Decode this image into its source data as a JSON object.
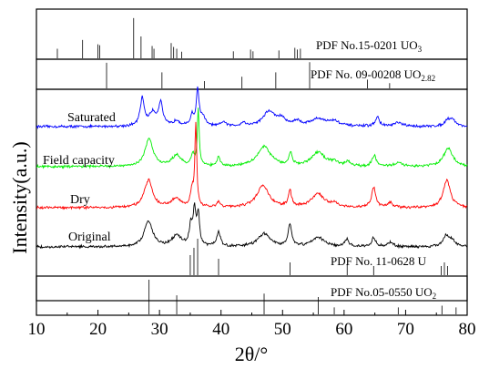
{
  "chart_data": {
    "type": "line",
    "xlabel": "2θ/°",
    "ylabel": "Intensity(a.u.)",
    "xlim": [
      10,
      80
    ],
    "x_ticks": [
      "10",
      "20",
      "30",
      "40",
      "50",
      "60",
      "70",
      "80"
    ],
    "grid": false,
    "reference_patterns": [
      {
        "label": "PDF No.15-0201 UO3",
        "lines": [
          {
            "x": 13.4,
            "h": 0.22
          },
          {
            "x": 17.5,
            "h": 0.42
          },
          {
            "x": 20.0,
            "h": 0.32
          },
          {
            "x": 20.3,
            "h": 0.3
          },
          {
            "x": 25.8,
            "h": 0.92
          },
          {
            "x": 27.0,
            "h": 0.5
          },
          {
            "x": 28.8,
            "h": 0.28
          },
          {
            "x": 29.1,
            "h": 0.22
          },
          {
            "x": 31.9,
            "h": 0.35
          },
          {
            "x": 32.3,
            "h": 0.26
          },
          {
            "x": 32.8,
            "h": 0.22
          },
          {
            "x": 33.6,
            "h": 0.15
          },
          {
            "x": 42.0,
            "h": 0.16
          },
          {
            "x": 44.8,
            "h": 0.2
          },
          {
            "x": 45.2,
            "h": 0.16
          },
          {
            "x": 49.4,
            "h": 0.18
          },
          {
            "x": 52.0,
            "h": 0.24
          },
          {
            "x": 52.4,
            "h": 0.2
          },
          {
            "x": 52.9,
            "h": 0.22
          }
        ]
      },
      {
        "label": "PDF No. 09-00208 UO2.82",
        "lines": [
          {
            "x": 21.4,
            "h": 0.88
          },
          {
            "x": 30.4,
            "h": 0.55
          },
          {
            "x": 37.3,
            "h": 0.25
          },
          {
            "x": 43.4,
            "h": 0.4
          },
          {
            "x": 48.9,
            "h": 0.55
          },
          {
            "x": 54.4,
            "h": 0.9
          },
          {
            "x": 63.8,
            "h": 0.3
          },
          {
            "x": 67.4,
            "h": 0.18
          }
        ]
      },
      {
        "label": "PDF No. 11-0628 U",
        "lines": [
          {
            "x": 35.0,
            "h": 0.55
          },
          {
            "x": 35.6,
            "h": 0.75
          },
          {
            "x": 36.2,
            "h": 1.0
          },
          {
            "x": 39.6,
            "h": 0.45
          },
          {
            "x": 51.2,
            "h": 0.35
          },
          {
            "x": 60.5,
            "h": 0.3
          },
          {
            "x": 64.8,
            "h": 0.25
          },
          {
            "x": 75.8,
            "h": 0.25
          },
          {
            "x": 76.3,
            "h": 0.35
          },
          {
            "x": 76.8,
            "h": 0.25
          }
        ]
      },
      {
        "label": "PDF No.05-0550 UO2",
        "lines": [
          {
            "x": 28.3,
            "h": 1.0
          },
          {
            "x": 32.8,
            "h": 0.55
          },
          {
            "x": 47.0,
            "h": 0.6
          },
          {
            "x": 55.8,
            "h": 0.5
          },
          {
            "x": 58.4,
            "h": 0.2
          },
          {
            "x": 68.8,
            "h": 0.2
          },
          {
            "x": 75.9,
            "h": 0.25
          },
          {
            "x": 78.2,
            "h": 0.2
          }
        ]
      }
    ],
    "series": [
      {
        "name": "Saturated",
        "color": "#0000ff",
        "peaks": [
          {
            "x": 27.2,
            "h": 30,
            "w": 0.4
          },
          {
            "x": 28.9,
            "h": 14,
            "w": 0.7
          },
          {
            "x": 30.2,
            "h": 25,
            "w": 0.4
          },
          {
            "x": 32.8,
            "h": 6,
            "w": 0.6
          },
          {
            "x": 35.3,
            "h": 12,
            "w": 0.3
          },
          {
            "x": 36.2,
            "h": 40,
            "w": 0.25
          },
          {
            "x": 37.0,
            "h": 10,
            "w": 0.5
          },
          {
            "x": 40.4,
            "h": 5,
            "w": 0.4
          },
          {
            "x": 43.6,
            "h": 4,
            "w": 0.4
          },
          {
            "x": 47.8,
            "h": 16,
            "w": 1.2
          },
          {
            "x": 49.8,
            "h": 7,
            "w": 0.8
          },
          {
            "x": 52.3,
            "h": 5,
            "w": 0.7
          },
          {
            "x": 55.8,
            "h": 8,
            "w": 1.5
          },
          {
            "x": 58.4,
            "h": 5,
            "w": 1.0
          },
          {
            "x": 65.4,
            "h": 10,
            "w": 0.4
          },
          {
            "x": 68.8,
            "h": 4,
            "w": 0.8
          },
          {
            "x": 76.8,
            "h": 6,
            "w": 0.6
          },
          {
            "x": 77.6,
            "h": 7,
            "w": 0.6
          }
        ]
      },
      {
        "name": "Field capacity",
        "color": "#00ee00",
        "peaks": [
          {
            "x": 28.3,
            "h": 30,
            "w": 0.8
          },
          {
            "x": 32.8,
            "h": 12,
            "w": 0.9
          },
          {
            "x": 35.4,
            "h": 12,
            "w": 0.3
          },
          {
            "x": 36.3,
            "h": 62,
            "w": 0.18
          },
          {
            "x": 39.6,
            "h": 10,
            "w": 0.3
          },
          {
            "x": 47.0,
            "h": 22,
            "w": 1.3
          },
          {
            "x": 51.3,
            "h": 14,
            "w": 0.3
          },
          {
            "x": 55.8,
            "h": 15,
            "w": 1.3
          },
          {
            "x": 58.4,
            "h": 4,
            "w": 0.8
          },
          {
            "x": 60.6,
            "h": 5,
            "w": 0.4
          },
          {
            "x": 64.9,
            "h": 12,
            "w": 0.4
          },
          {
            "x": 68.8,
            "h": 4,
            "w": 0.8
          },
          {
            "x": 76.9,
            "h": 20,
            "w": 0.9
          }
        ]
      },
      {
        "name": "Dry",
        "color": "#ff0000",
        "peaks": [
          {
            "x": 28.2,
            "h": 30,
            "w": 0.8
          },
          {
            "x": 32.7,
            "h": 10,
            "w": 0.9
          },
          {
            "x": 35.3,
            "h": 18,
            "w": 0.3
          },
          {
            "x": 35.9,
            "h": 90,
            "w": 0.18
          },
          {
            "x": 39.6,
            "h": 6,
            "w": 0.3
          },
          {
            "x": 46.8,
            "h": 24,
            "w": 1.2
          },
          {
            "x": 51.2,
            "h": 18,
            "w": 0.3
          },
          {
            "x": 55.7,
            "h": 15,
            "w": 1.2
          },
          {
            "x": 58.4,
            "h": 4,
            "w": 0.8
          },
          {
            "x": 64.8,
            "h": 22,
            "w": 0.4
          },
          {
            "x": 67.5,
            "h": 5,
            "w": 0.5
          },
          {
            "x": 76.7,
            "h": 30,
            "w": 0.7
          }
        ]
      },
      {
        "name": "Original",
        "color": "#000000",
        "peaks": [
          {
            "x": 28.2,
            "h": 28,
            "w": 0.8
          },
          {
            "x": 32.8,
            "h": 12,
            "w": 0.9
          },
          {
            "x": 35.1,
            "h": 22,
            "w": 0.3
          },
          {
            "x": 35.7,
            "h": 38,
            "w": 0.25
          },
          {
            "x": 36.3,
            "h": 34,
            "w": 0.25
          },
          {
            "x": 39.6,
            "h": 16,
            "w": 0.35
          },
          {
            "x": 47.0,
            "h": 14,
            "w": 1.2
          },
          {
            "x": 51.2,
            "h": 24,
            "w": 0.35
          },
          {
            "x": 55.8,
            "h": 10,
            "w": 1.2
          },
          {
            "x": 60.4,
            "h": 8,
            "w": 0.4
          },
          {
            "x": 64.8,
            "h": 10,
            "w": 0.4
          },
          {
            "x": 67.5,
            "h": 5,
            "w": 0.5
          },
          {
            "x": 76.6,
            "h": 12,
            "w": 0.6
          },
          {
            "x": 77.6,
            "h": 6,
            "w": 0.5
          }
        ]
      }
    ]
  }
}
